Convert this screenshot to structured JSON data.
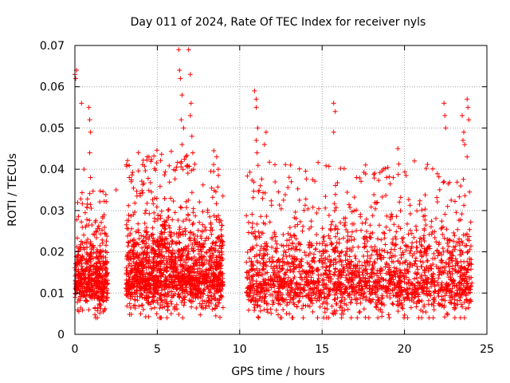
{
  "chart_data": {
    "type": "scatter",
    "title": "Day 011 of 2024, Rate Of TEC Index for receiver nyls",
    "xlabel": "GPS time / hours",
    "ylabel": "ROTI / TECUs",
    "xlim": [
      0,
      25
    ],
    "ylim": [
      0,
      0.07
    ],
    "x_ticks": [
      0,
      5,
      10,
      15,
      20,
      25
    ],
    "x_tick_labels": [
      "0",
      "5",
      "10",
      "15",
      "20",
      "25"
    ],
    "y_ticks": [
      0,
      0.01,
      0.02,
      0.03,
      0.04,
      0.05,
      0.06,
      0.07
    ],
    "y_tick_labels": [
      "0",
      "0.01",
      "0.02",
      "0.03",
      "0.04",
      "0.05",
      "0.06",
      "0.07"
    ],
    "grid": true,
    "marker": "+",
    "color": "#ff0000",
    "series": [
      {
        "name": "ROTI",
        "segments": [
          {
            "x_start": 0.0,
            "x_end": 2.0,
            "baseline": 0.013,
            "spread": 0.006,
            "max": 0.035
          },
          {
            "x_start": 3.1,
            "x_end": 9.0,
            "baseline": 0.014,
            "spread": 0.007,
            "max": 0.045
          },
          {
            "x_start": 10.4,
            "x_end": 24.1,
            "baseline": 0.013,
            "spread": 0.007,
            "max": 0.042
          }
        ],
        "outliers": [
          [
            0.0,
            0.063
          ],
          [
            0.05,
            0.062
          ],
          [
            0.1,
            0.064
          ],
          [
            0.4,
            0.056
          ],
          [
            0.85,
            0.055
          ],
          [
            0.9,
            0.052
          ],
          [
            0.95,
            0.049
          ],
          [
            0.9,
            0.044
          ],
          [
            0.95,
            0.038
          ],
          [
            6.3,
            0.069
          ],
          [
            6.35,
            0.064
          ],
          [
            6.4,
            0.062
          ],
          [
            6.5,
            0.058
          ],
          [
            6.45,
            0.052
          ],
          [
            6.6,
            0.05
          ],
          [
            6.5,
            0.046
          ],
          [
            6.9,
            0.069
          ],
          [
            7.0,
            0.063
          ],
          [
            7.05,
            0.056
          ],
          [
            7.0,
            0.053
          ],
          [
            7.1,
            0.048
          ],
          [
            7.15,
            0.044
          ],
          [
            7.2,
            0.04
          ],
          [
            8.6,
            0.043
          ],
          [
            8.7,
            0.04
          ],
          [
            10.9,
            0.059
          ],
          [
            11.0,
            0.057
          ],
          [
            11.0,
            0.055
          ],
          [
            11.1,
            0.05
          ],
          [
            11.0,
            0.047
          ],
          [
            11.05,
            0.044
          ],
          [
            11.6,
            0.049
          ],
          [
            11.5,
            0.046
          ],
          [
            15.7,
            0.056
          ],
          [
            15.8,
            0.054
          ],
          [
            15.7,
            0.049
          ],
          [
            19.6,
            0.045
          ],
          [
            20.6,
            0.042
          ],
          [
            22.4,
            0.056
          ],
          [
            22.45,
            0.053
          ],
          [
            22.5,
            0.05
          ],
          [
            22.4,
            0.037
          ],
          [
            23.5,
            0.053
          ],
          [
            23.6,
            0.049
          ],
          [
            23.55,
            0.047
          ],
          [
            23.65,
            0.046
          ],
          [
            23.8,
            0.057
          ],
          [
            23.85,
            0.055
          ],
          [
            23.9,
            0.052
          ],
          [
            23.8,
            0.043
          ],
          [
            0.55,
            0.04
          ],
          [
            2.5,
            0.035
          ],
          [
            3.3,
            0.038
          ]
        ]
      }
    ]
  }
}
